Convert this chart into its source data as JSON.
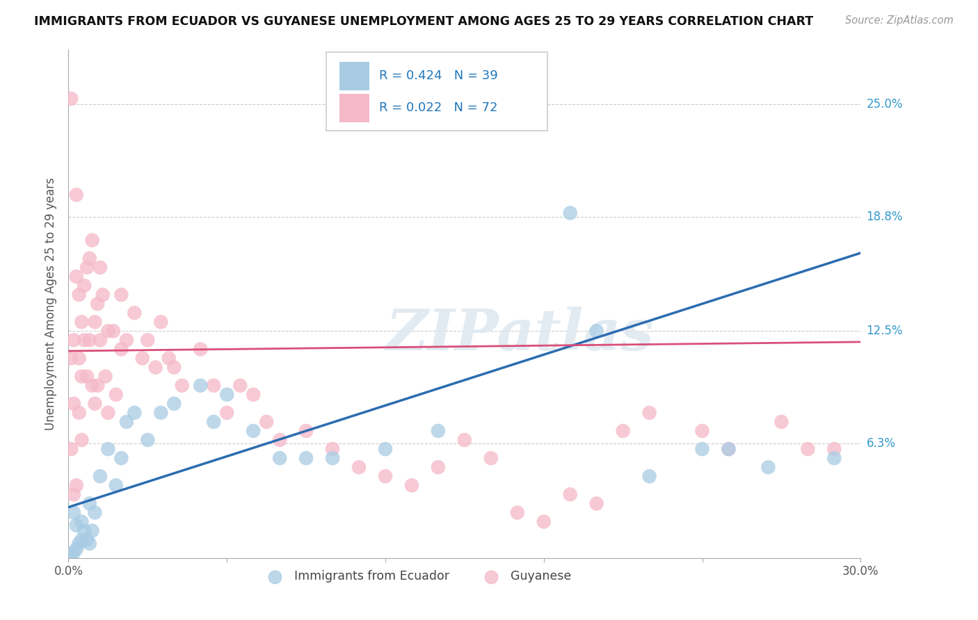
{
  "title": "IMMIGRANTS FROM ECUADOR VS GUYANESE UNEMPLOYMENT AMONG AGES 25 TO 29 YEARS CORRELATION CHART",
  "source": "Source: ZipAtlas.com",
  "ylabel": "Unemployment Among Ages 25 to 29 years",
  "xlim": [
    0.0,
    0.3
  ],
  "ylim": [
    0.0,
    0.28
  ],
  "yticks": [
    0.063,
    0.125,
    0.188,
    0.25
  ],
  "ytick_labels": [
    "6.3%",
    "12.5%",
    "18.8%",
    "25.0%"
  ],
  "xticks": [
    0.0,
    0.06,
    0.12,
    0.18,
    0.24,
    0.3
  ],
  "xtick_labels": [
    "0.0%",
    "",
    "",
    "",
    "",
    "30.0%"
  ],
  "blue_R": 0.424,
  "blue_N": 39,
  "pink_R": 0.022,
  "pink_N": 72,
  "blue_color": "#a8cce4",
  "pink_color": "#f5b8c8",
  "blue_line_color": "#2b6cb0",
  "pink_line_color": "#d94f7a",
  "watermark": "ZIPatlas",
  "blue_line_x0": 0.0,
  "blue_line_y0": 0.028,
  "blue_line_x1": 0.3,
  "blue_line_y1": 0.168,
  "pink_line_x0": 0.0,
  "pink_line_y0": 0.114,
  "pink_line_x1": 0.3,
  "pink_line_y1": 0.119,
  "blue_scatter_x": [
    0.001,
    0.002,
    0.002,
    0.003,
    0.003,
    0.004,
    0.005,
    0.005,
    0.006,
    0.007,
    0.008,
    0.008,
    0.009,
    0.01,
    0.012,
    0.015,
    0.018,
    0.02,
    0.022,
    0.025,
    0.03,
    0.035,
    0.04,
    0.05,
    0.055,
    0.06,
    0.07,
    0.08,
    0.09,
    0.1,
    0.12,
    0.14,
    0.19,
    0.2,
    0.22,
    0.24,
    0.25,
    0.265,
    0.29
  ],
  "blue_scatter_y": [
    0.002,
    0.003,
    0.025,
    0.005,
    0.018,
    0.008,
    0.01,
    0.02,
    0.015,
    0.01,
    0.008,
    0.03,
    0.015,
    0.025,
    0.045,
    0.06,
    0.04,
    0.055,
    0.075,
    0.08,
    0.065,
    0.08,
    0.085,
    0.095,
    0.075,
    0.09,
    0.07,
    0.055,
    0.055,
    0.055,
    0.06,
    0.07,
    0.19,
    0.125,
    0.045,
    0.06,
    0.06,
    0.05,
    0.055
  ],
  "pink_scatter_x": [
    0.001,
    0.001,
    0.001,
    0.002,
    0.002,
    0.002,
    0.003,
    0.003,
    0.003,
    0.004,
    0.004,
    0.004,
    0.005,
    0.005,
    0.005,
    0.006,
    0.006,
    0.007,
    0.007,
    0.008,
    0.008,
    0.009,
    0.009,
    0.01,
    0.01,
    0.011,
    0.011,
    0.012,
    0.012,
    0.013,
    0.014,
    0.015,
    0.015,
    0.017,
    0.018,
    0.02,
    0.02,
    0.022,
    0.025,
    0.028,
    0.03,
    0.033,
    0.035,
    0.038,
    0.04,
    0.043,
    0.05,
    0.055,
    0.06,
    0.065,
    0.07,
    0.075,
    0.08,
    0.09,
    0.1,
    0.11,
    0.12,
    0.13,
    0.14,
    0.15,
    0.16,
    0.17,
    0.18,
    0.19,
    0.2,
    0.21,
    0.22,
    0.24,
    0.25,
    0.27,
    0.28,
    0.29
  ],
  "pink_scatter_y": [
    0.253,
    0.11,
    0.06,
    0.12,
    0.085,
    0.035,
    0.2,
    0.155,
    0.04,
    0.145,
    0.11,
    0.08,
    0.13,
    0.1,
    0.065,
    0.15,
    0.12,
    0.16,
    0.1,
    0.165,
    0.12,
    0.175,
    0.095,
    0.13,
    0.085,
    0.14,
    0.095,
    0.16,
    0.12,
    0.145,
    0.1,
    0.125,
    0.08,
    0.125,
    0.09,
    0.145,
    0.115,
    0.12,
    0.135,
    0.11,
    0.12,
    0.105,
    0.13,
    0.11,
    0.105,
    0.095,
    0.115,
    0.095,
    0.08,
    0.095,
    0.09,
    0.075,
    0.065,
    0.07,
    0.06,
    0.05,
    0.045,
    0.04,
    0.05,
    0.065,
    0.055,
    0.025,
    0.02,
    0.035,
    0.03,
    0.07,
    0.08,
    0.07,
    0.06,
    0.075,
    0.06,
    0.06
  ]
}
